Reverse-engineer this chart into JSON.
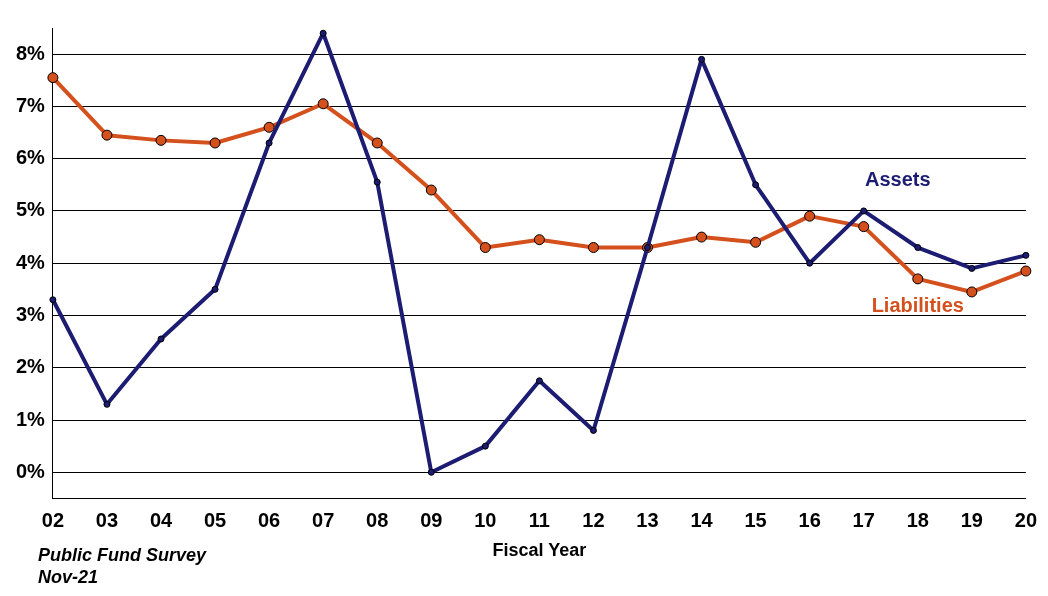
{
  "chart_data": {
    "type": "line",
    "xlabel": "Fiscal Year",
    "annotations": [
      "Public Fund Survey",
      "Nov-21"
    ],
    "categories": [
      "02",
      "03",
      "04",
      "05",
      "06",
      "07",
      "08",
      "09",
      "10",
      "11",
      "12",
      "13",
      "14",
      "15",
      "16",
      "17",
      "18",
      "19",
      "20"
    ],
    "series": [
      {
        "name": "Assets",
        "color": "#1c1c72",
        "values": [
          3.3,
          1.3,
          2.55,
          3.5,
          6.3,
          8.4,
          5.55,
          0.0,
          0.5,
          1.75,
          0.8,
          4.3,
          7.9,
          5.5,
          4.0,
          5.0,
          4.3,
          3.9,
          4.15
        ]
      },
      {
        "name": "Liabilities",
        "color": "#d4501c",
        "values": [
          7.55,
          6.45,
          6.35,
          6.3,
          6.6,
          7.05,
          6.3,
          5.4,
          4.3,
          4.45,
          4.3,
          4.3,
          4.5,
          4.4,
          4.9,
          4.7,
          3.7,
          3.45,
          3.85
        ]
      }
    ],
    "ylim": [
      -0.5,
      8.5
    ],
    "yticks": [
      {
        "value": 0,
        "label": "0%"
      },
      {
        "value": 1,
        "label": "1%"
      },
      {
        "value": 2,
        "label": "2%"
      },
      {
        "value": 3,
        "label": "3%"
      },
      {
        "value": 4,
        "label": "4%"
      },
      {
        "value": 5,
        "label": "5%"
      },
      {
        "value": 6,
        "label": "6%"
      },
      {
        "value": 7,
        "label": "7%"
      },
      {
        "value": 8,
        "label": "8%"
      }
    ],
    "grid": "y",
    "legend": false,
    "marker": "circle",
    "line_style": "solid"
  }
}
